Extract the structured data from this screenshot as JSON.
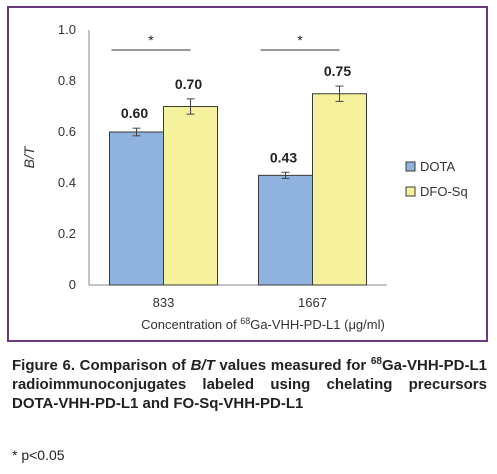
{
  "chart_data": {
    "type": "bar",
    "categories": [
      "833",
      "1667"
    ],
    "series": [
      {
        "name": "DOTA",
        "values": [
          0.6,
          0.43
        ],
        "labels": [
          "0.60",
          "0.43"
        ],
        "errors": [
          0.015,
          0.012
        ],
        "color": "#8fb3de"
      },
      {
        "name": "DFO-Sq",
        "values": [
          0.7,
          0.75
        ],
        "labels": [
          "0.70",
          "0.75"
        ],
        "errors": [
          0.03,
          0.03
        ],
        "color": "#f5f19c"
      }
    ],
    "ylabel": "B/T",
    "xlabel_prefix": "Concentration of ",
    "xlabel_sup": "68",
    "xlabel_rest": "Ga-VHH-PD-L1 (μg/ml)",
    "ylim": [
      0,
      1.0
    ],
    "yticks": [
      "0",
      "0.2",
      "0.4",
      "0.6",
      "0.8",
      "1.0"
    ],
    "significance": [
      "*",
      "*"
    ],
    "legend_position": "right"
  },
  "caption": {
    "lead": "Figure 6. Comparison of ",
    "italic": "B/T",
    "mid": " values measured for ",
    "sup": "68",
    "rest": "Ga-VHH-PD-L1 radioimmunoconjugates labeled using chelating precursors DOTA-VHH-PD-L1 and FO-Sq-VHH-PD-L1"
  },
  "note": "* p<0.05"
}
